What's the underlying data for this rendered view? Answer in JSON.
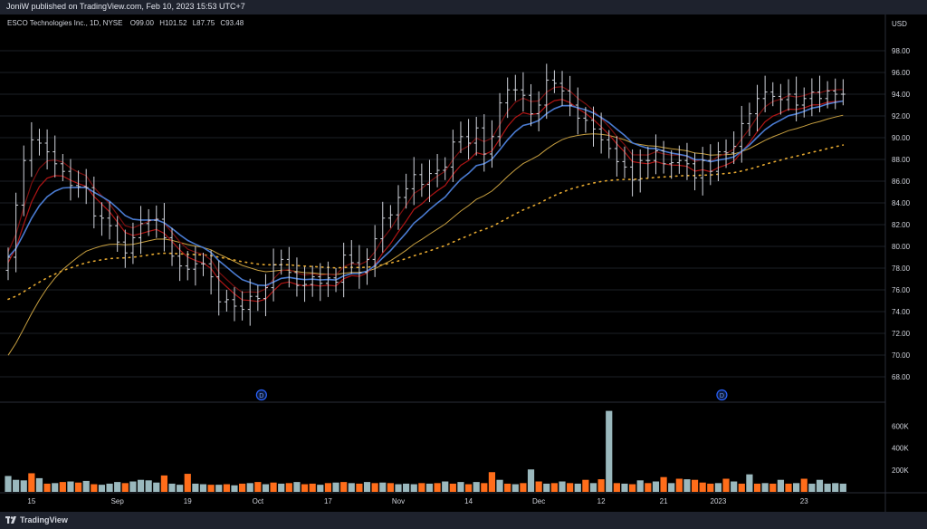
{
  "header": {
    "published": "JoniW published on TradingView.com, Feb 10, 2023 15:53 UTC+7"
  },
  "legend": {
    "symbol": "ESCO Technologies Inc., 1D, NYSE",
    "open_label": "O",
    "open": "99.00",
    "high_label": "H",
    "high": "101.52",
    "low_label": "L",
    "low": "87.75",
    "close_label": "C",
    "close": "93.48"
  },
  "footer": {
    "brand": "TradingView"
  },
  "colors": {
    "background": "#000000",
    "up_bar": "#d1d4dc",
    "vol_up": "#9ab8bd",
    "vol_down": "#ff6d1a",
    "ma_fast": "#7a0f0f",
    "ma_fast2": "#b01515",
    "ma_blue": "#4a7bd1",
    "ma_gold": "#c8a040",
    "ma_dotted": "#e5a830",
    "grid": "#1c1f26",
    "event": "#2962ff"
  },
  "chart_data": {
    "type": "bar",
    "currency": "USD",
    "y_ticks": [
      "98.00",
      "96.00",
      "94.00",
      "92.00",
      "90.00",
      "88.00",
      "86.00",
      "84.00",
      "82.00",
      "80.00",
      "78.00",
      "76.00",
      "74.00",
      "72.00",
      "70.00",
      "68.00"
    ],
    "ylim": [
      66.5,
      99
    ],
    "volume_ticks": [
      "600K",
      "400K",
      "200K"
    ],
    "volume_ylim": [
      0,
      720000
    ],
    "x_labels": [
      {
        "index": 3,
        "label": "15"
      },
      {
        "index": 14,
        "label": "Sep"
      },
      {
        "index": 23,
        "label": "19"
      },
      {
        "index": 32,
        "label": "Oct"
      },
      {
        "index": 41,
        "label": "17"
      },
      {
        "index": 50,
        "label": "Nov"
      },
      {
        "index": 59,
        "label": "14"
      },
      {
        "index": 68,
        "label": "Dec"
      },
      {
        "index": 76,
        "label": "12"
      },
      {
        "index": 84,
        "label": "21"
      },
      {
        "index": 91,
        "label": "2023"
      },
      {
        "index": 102,
        "label": "23"
      }
    ],
    "events": [
      {
        "index": 32,
        "label": "D"
      },
      {
        "index": 91,
        "label": "D"
      }
    ],
    "close": [
      79.0,
      83.8,
      87.9,
      89.8,
      89.5,
      88.7,
      87.6,
      86.9,
      85.6,
      85.5,
      85.4,
      82.8,
      82.6,
      81.9,
      80.4,
      79.4,
      80.8,
      82.1,
      82.4,
      82.5,
      80.8,
      79.1,
      78.2,
      77.9,
      78.4,
      78.4,
      77.2,
      74.9,
      75.1,
      74.5,
      74.2,
      75.4,
      75.2,
      76.2,
      78.3,
      78.8,
      77.6,
      76.4,
      76.5,
      77.2,
      76.6,
      77.1,
      76.7,
      79.2,
      78.5,
      77.6,
      78.8,
      80.7,
      82.6,
      82.9,
      84.5,
      85.3,
      86.6,
      85.7,
      86.7,
      87.0,
      87.3,
      89.6,
      90.1,
      89.5,
      90.9,
      88.5,
      90.1,
      93.2,
      94.4,
      94.4,
      93.9,
      92.2,
      93.0,
      95.3,
      95.0,
      94.3,
      93.0,
      91.8,
      91.6,
      90.8,
      89.8,
      89.0,
      87.8,
      87.3,
      86.1,
      87.9,
      87.9,
      88.8,
      87.6,
      87.7,
      87.9,
      87.6,
      86.3,
      87.9,
      86.9,
      88.7,
      88.6,
      89.2,
      91.3,
      92.2,
      93.6,
      94.2,
      93.8,
      93.5,
      94.0,
      93.0,
      93.6,
      94.2,
      93.6,
      94.3,
      94.0,
      94.0
    ],
    "volume": [
      145000,
      110000,
      105000,
      170000,
      125000,
      75000,
      80000,
      90000,
      95000,
      85000,
      100000,
      70000,
      65000,
      75000,
      90000,
      80000,
      95000,
      110000,
      105000,
      85000,
      150000,
      75000,
      65000,
      165000,
      75000,
      70000,
      65000,
      65000,
      70000,
      60000,
      75000,
      80000,
      90000,
      70000,
      85000,
      75000,
      80000,
      90000,
      70000,
      75000,
      65000,
      80000,
      85000,
      90000,
      80000,
      75000,
      90000,
      80000,
      85000,
      80000,
      70000,
      75000,
      70000,
      80000,
      75000,
      80000,
      95000,
      75000,
      90000,
      70000,
      90000,
      80000,
      180000,
      110000,
      75000,
      70000,
      80000,
      205000,
      95000,
      75000,
      80000,
      95000,
      80000,
      75000,
      110000,
      80000,
      115000,
      740000,
      80000,
      75000,
      70000,
      105000,
      80000,
      95000,
      135000,
      80000,
      120000,
      115000,
      110000,
      85000,
      75000,
      80000,
      120000,
      95000,
      75000,
      160000,
      75000,
      80000,
      75000,
      110000,
      75000,
      80000,
      120000,
      75000,
      110000,
      75000,
      80000,
      75000
    ],
    "volume_down_indices": [
      3,
      5,
      7,
      9,
      11,
      15,
      20,
      23,
      26,
      28,
      30,
      32,
      34,
      36,
      38,
      39,
      41,
      43,
      45,
      47,
      49,
      53,
      55,
      57,
      59,
      61,
      62,
      64,
      66,
      68,
      70,
      72,
      74,
      76,
      78,
      80,
      82,
      84,
      86,
      88,
      89,
      90,
      92,
      94,
      96,
      98,
      100,
      102
    ]
  }
}
